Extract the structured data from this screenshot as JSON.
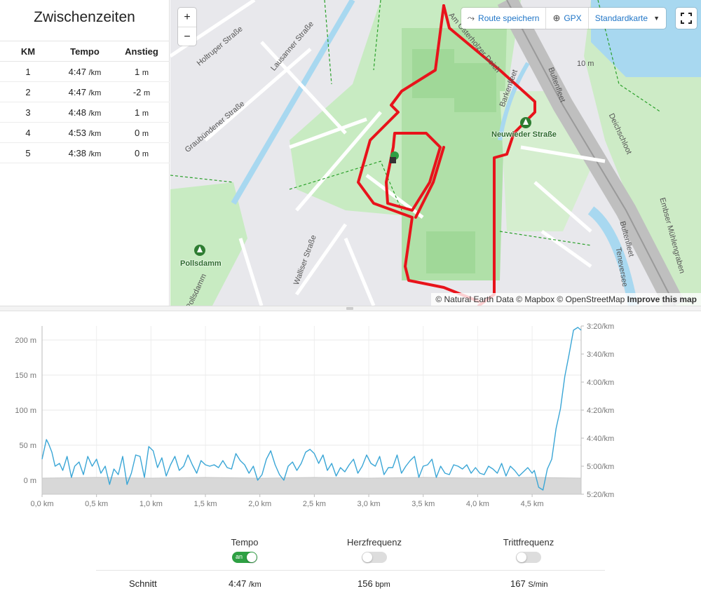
{
  "splits": {
    "title": "Zwischenzeiten",
    "headers": [
      "KM",
      "Tempo",
      "Anstieg"
    ],
    "rows": [
      {
        "km": "1",
        "pace": "4:47",
        "pace_unit": "/km",
        "ascent": "1",
        "ascent_unit": "m"
      },
      {
        "km": "2",
        "pace": "4:47",
        "pace_unit": "/km",
        "ascent": "-2",
        "ascent_unit": "m"
      },
      {
        "km": "3",
        "pace": "4:48",
        "pace_unit": "/km",
        "ascent": "1",
        "ascent_unit": "m"
      },
      {
        "km": "4",
        "pace": "4:53",
        "pace_unit": "/km",
        "ascent": "0",
        "ascent_unit": "m"
      },
      {
        "km": "5",
        "pace": "4:38",
        "pace_unit": "/km",
        "ascent": "0",
        "ascent_unit": "m"
      }
    ]
  },
  "map": {
    "zoom_in": "+",
    "zoom_out": "−",
    "save_route": "Route speichern",
    "gpx": "GPX",
    "map_style": "Standardkarte",
    "attribution": "© Natural Earth Data © Mapbox © OpenStreetMap",
    "improve": "Improve this map",
    "labels": {
      "holtruper": "Holtruper Straße",
      "lausanner": "Lausanner Straße",
      "graubuendener": "Graubündener Straße",
      "walliser": "Walliser Straße",
      "pollsdamm": "Pollsdamm",
      "pollsdamm_street": "Pollsdamm",
      "neuwieder": "Neuwieder Straße",
      "barkenfleet": "Barkenfleet",
      "bultenfleet": "Bultenfleet",
      "bultenfleet2": "Bultenfleet",
      "deichschloot": "Deichschloot",
      "embser": "Embser Mühlengraben",
      "ostendeich": "Am Osterholzer Deich",
      "tenever": "Teneversee",
      "contour": "10 m"
    },
    "colors": {
      "route": "#e8131b",
      "park": "#b8e6b0",
      "water": "#a8d8f0"
    }
  },
  "chart_data": {
    "type": "line",
    "x_unit": "km",
    "xlim": [
      0,
      4.95
    ],
    "x_ticks": [
      "0,0 km",
      "0,5 km",
      "1,0 km",
      "1,5 km",
      "2,0 km",
      "2,5 km",
      "3,0 km",
      "3,5 km",
      "4,0 km",
      "4,5 km"
    ],
    "y_left_ticks": [
      "200 m",
      "150 m",
      "100 m",
      "50 m",
      "0 m"
    ],
    "y_right_ticks": [
      "3:20/km",
      "3:40/km",
      "4:00/km",
      "4:20/km",
      "4:40/km",
      "5:00/km",
      "5:20/km"
    ],
    "y_left_range_m": [
      -20,
      220
    ],
    "y_right_range_sec_per_km": [
      200,
      320
    ],
    "grid": true,
    "series": [
      {
        "role": "elevation",
        "color": "#d0d0d0",
        "x": [
          0,
          0.5,
          1,
          1.5,
          2,
          2.5,
          3,
          3.5,
          4,
          4.5,
          4.95
        ],
        "values": [
          3,
          4,
          3,
          4,
          3,
          4,
          3,
          4,
          3,
          4,
          3
        ]
      },
      {
        "role": "pace",
        "color": "#3aa6d6",
        "x": [
          0,
          0.04,
          0.06,
          0.09,
          0.12,
          0.16,
          0.19,
          0.23,
          0.27,
          0.3,
          0.34,
          0.38,
          0.42,
          0.46,
          0.5,
          0.54,
          0.58,
          0.62,
          0.66,
          0.7,
          0.74,
          0.78,
          0.82,
          0.86,
          0.9,
          0.94,
          0.98,
          1.02,
          1.06,
          1.1,
          1.14,
          1.18,
          1.22,
          1.26,
          1.3,
          1.34,
          1.38,
          1.42,
          1.46,
          1.5,
          1.54,
          1.58,
          1.62,
          1.66,
          1.7,
          1.74,
          1.78,
          1.82,
          1.86,
          1.9,
          1.94,
          1.98,
          2.02,
          2.06,
          2.1,
          2.14,
          2.18,
          2.22,
          2.26,
          2.3,
          2.34,
          2.38,
          2.42,
          2.46,
          2.5,
          2.54,
          2.58,
          2.62,
          2.66,
          2.7,
          2.74,
          2.78,
          2.82,
          2.86,
          2.9,
          2.94,
          2.98,
          3.02,
          3.06,
          3.1,
          3.14,
          3.18,
          3.22,
          3.26,
          3.3,
          3.34,
          3.38,
          3.42,
          3.46,
          3.5,
          3.54,
          3.58,
          3.62,
          3.66,
          3.7,
          3.74,
          3.78,
          3.82,
          3.86,
          3.9,
          3.94,
          3.98,
          4.02,
          4.06,
          4.1,
          4.14,
          4.18,
          4.22,
          4.26,
          4.3,
          4.34,
          4.38,
          4.42,
          4.46,
          4.5,
          4.52,
          4.56,
          4.6,
          4.64,
          4.68,
          4.72,
          4.76,
          4.8,
          4.84,
          4.88,
          4.92,
          4.95
        ],
        "values": [
          295,
          281,
          284,
          290,
          300,
          298,
          303,
          293,
          308,
          300,
          297,
          306,
          293,
          300,
          295,
          305,
          300,
          313,
          302,
          306,
          293,
          313,
          305,
          292,
          293,
          308,
          286,
          289,
          301,
          294,
          307,
          299,
          293,
          303,
          300,
          292,
          299,
          305,
          296,
          299,
          300,
          299,
          301,
          296,
          301,
          302,
          291,
          296,
          299,
          305,
          300,
          310,
          306,
          295,
          289,
          299,
          306,
          310,
          300,
          297,
          303,
          298,
          290,
          288,
          291,
          298,
          292,
          303,
          298,
          307,
          301,
          304,
          299,
          295,
          305,
          300,
          292,
          298,
          300,
          293,
          306,
          301,
          301,
          292,
          305,
          300,
          296,
          293,
          308,
          300,
          299,
          295,
          308,
          300,
          305,
          306,
          299,
          300,
          302,
          299,
          305,
          301,
          305,
          306,
          300,
          302,
          305,
          298,
          307,
          300,
          303,
          307,
          304,
          301,
          305,
          303,
          315,
          317,
          302,
          295,
          273,
          259,
          236,
          220,
          203,
          201,
          203
        ]
      }
    ]
  },
  "toggles": [
    {
      "label": "Tempo",
      "on": true,
      "on_text": "an"
    },
    {
      "label": "Herzfrequenz",
      "on": false
    },
    {
      "label": "Trittfrequenz",
      "on": false
    }
  ],
  "average": {
    "label": "Schnitt",
    "pace": "4:47",
    "pace_unit": "/km",
    "hr": "156",
    "hr_unit": "bpm",
    "cadence": "167",
    "cadence_unit": "S/min"
  }
}
